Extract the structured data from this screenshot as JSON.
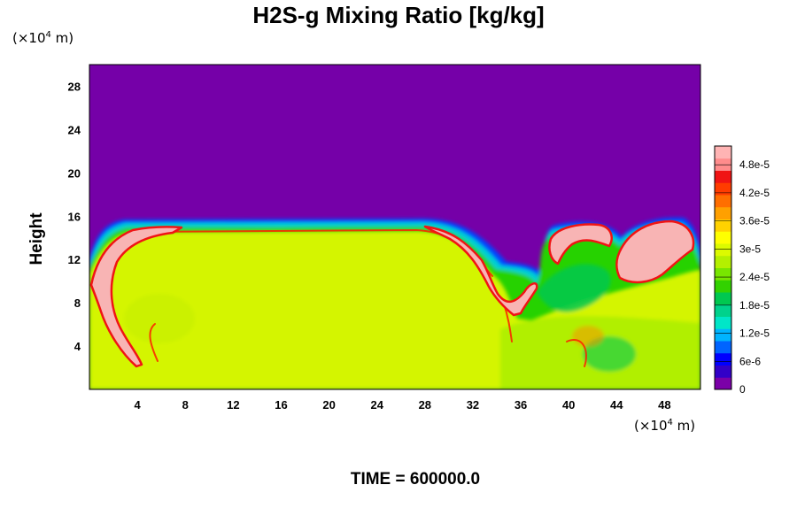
{
  "chart_data": {
    "type": "heatmap",
    "title": "H2S-g Mixing Ratio [kg/kg]",
    "ylabel": "Height",
    "xlabel": "",
    "x_unit": {
      "prefix": "(×10",
      "exp": "4",
      "suffix": " m)"
    },
    "y_unit": {
      "prefix": "(×10",
      "exp": "4",
      "suffix": " m)"
    },
    "xlim": [
      0,
      51
    ],
    "ylim": [
      0,
      30
    ],
    "x_ticks": [
      "4",
      "8",
      "12",
      "16",
      "20",
      "24",
      "28",
      "32",
      "36",
      "40",
      "44",
      "48"
    ],
    "y_ticks": [
      "4",
      "8",
      "12",
      "16",
      "20",
      "24",
      "28"
    ],
    "colorbar": {
      "range": [
        0,
        5.2e-05
      ],
      "labels": [
        "0",
        "6e-6",
        "1.2e-5",
        "1.8e-5",
        "2.4e-5",
        "3e-5",
        "3.6e-5",
        "4.2e-5",
        "4.8e-5"
      ],
      "colors": [
        "#7b00a8",
        "#3200c8",
        "#0000ff",
        "#0064ff",
        "#00b4ff",
        "#00e6c8",
        "#00d28c",
        "#00c850",
        "#32d200",
        "#78e600",
        "#b4f000",
        "#dcfa00",
        "#ffff00",
        "#ffd200",
        "#ffa000",
        "#ff6e00",
        "#ff3c00",
        "#f01414",
        "#ff8c8c",
        "#ffb4b4"
      ]
    },
    "background_value": 0,
    "bulk_value": 3.3e-05,
    "peak_value": 5.2e-05,
    "grid": false,
    "legend": "colorbar-right"
  },
  "footer": {
    "time_label": "TIME = 600000.0"
  },
  "colors": {
    "background_purple": "#7500a8",
    "bulk_yellow": "#d4f500",
    "peak_pink": "#f8b4b4"
  }
}
